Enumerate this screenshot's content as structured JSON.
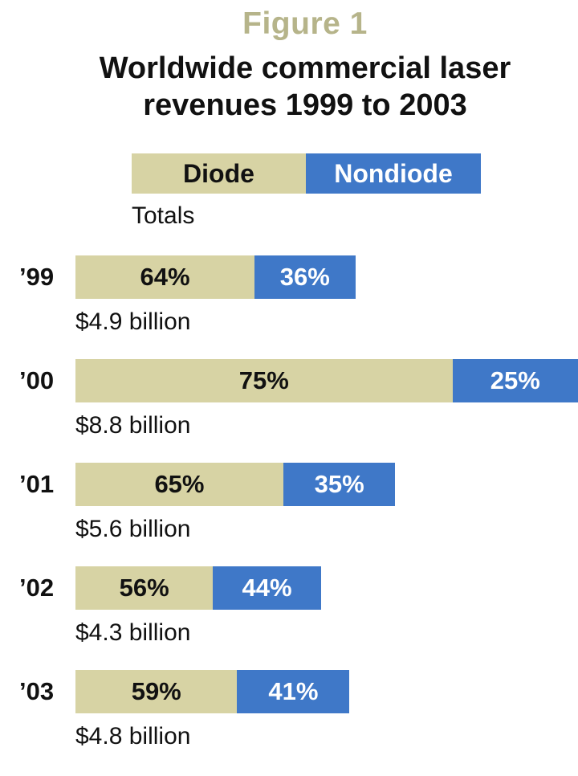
{
  "figure_label": "Figure 1",
  "title_lines": [
    "Worldwide commercial laser",
    "revenues 1999 to 2003"
  ],
  "legend": {
    "diode": "Diode",
    "nondiode": "Nondiode"
  },
  "totals_label": "Totals",
  "colors": {
    "diode": "#d7d3a4",
    "nondiode": "#3f78c8",
    "figure_label": "#b6b48a"
  },
  "chart_data": {
    "type": "bar",
    "orientation": "horizontal",
    "stacked": true,
    "title": "Worldwide commercial laser revenues 1999 to 2003",
    "categories": [
      "’99",
      "’00",
      "’01",
      "’02",
      "’03"
    ],
    "totals_billion_usd": [
      4.9,
      8.8,
      5.6,
      4.3,
      4.8
    ],
    "total_labels": [
      "$4.9 billion",
      "$8.8 billion",
      "$5.6 billion",
      "$4.3 billion",
      "$4.8 billion"
    ],
    "series": [
      {
        "name": "Diode",
        "values_percent": [
          64,
          75,
          65,
          56,
          59
        ],
        "labels": [
          "64%",
          "75%",
          "65%",
          "56%",
          "59%"
        ]
      },
      {
        "name": "Nondiode",
        "values_percent": [
          36,
          25,
          35,
          44,
          41
        ],
        "labels": [
          "36%",
          "25%",
          "35%",
          "44%",
          "41%"
        ]
      }
    ],
    "legend_position": "top",
    "grid": false
  }
}
